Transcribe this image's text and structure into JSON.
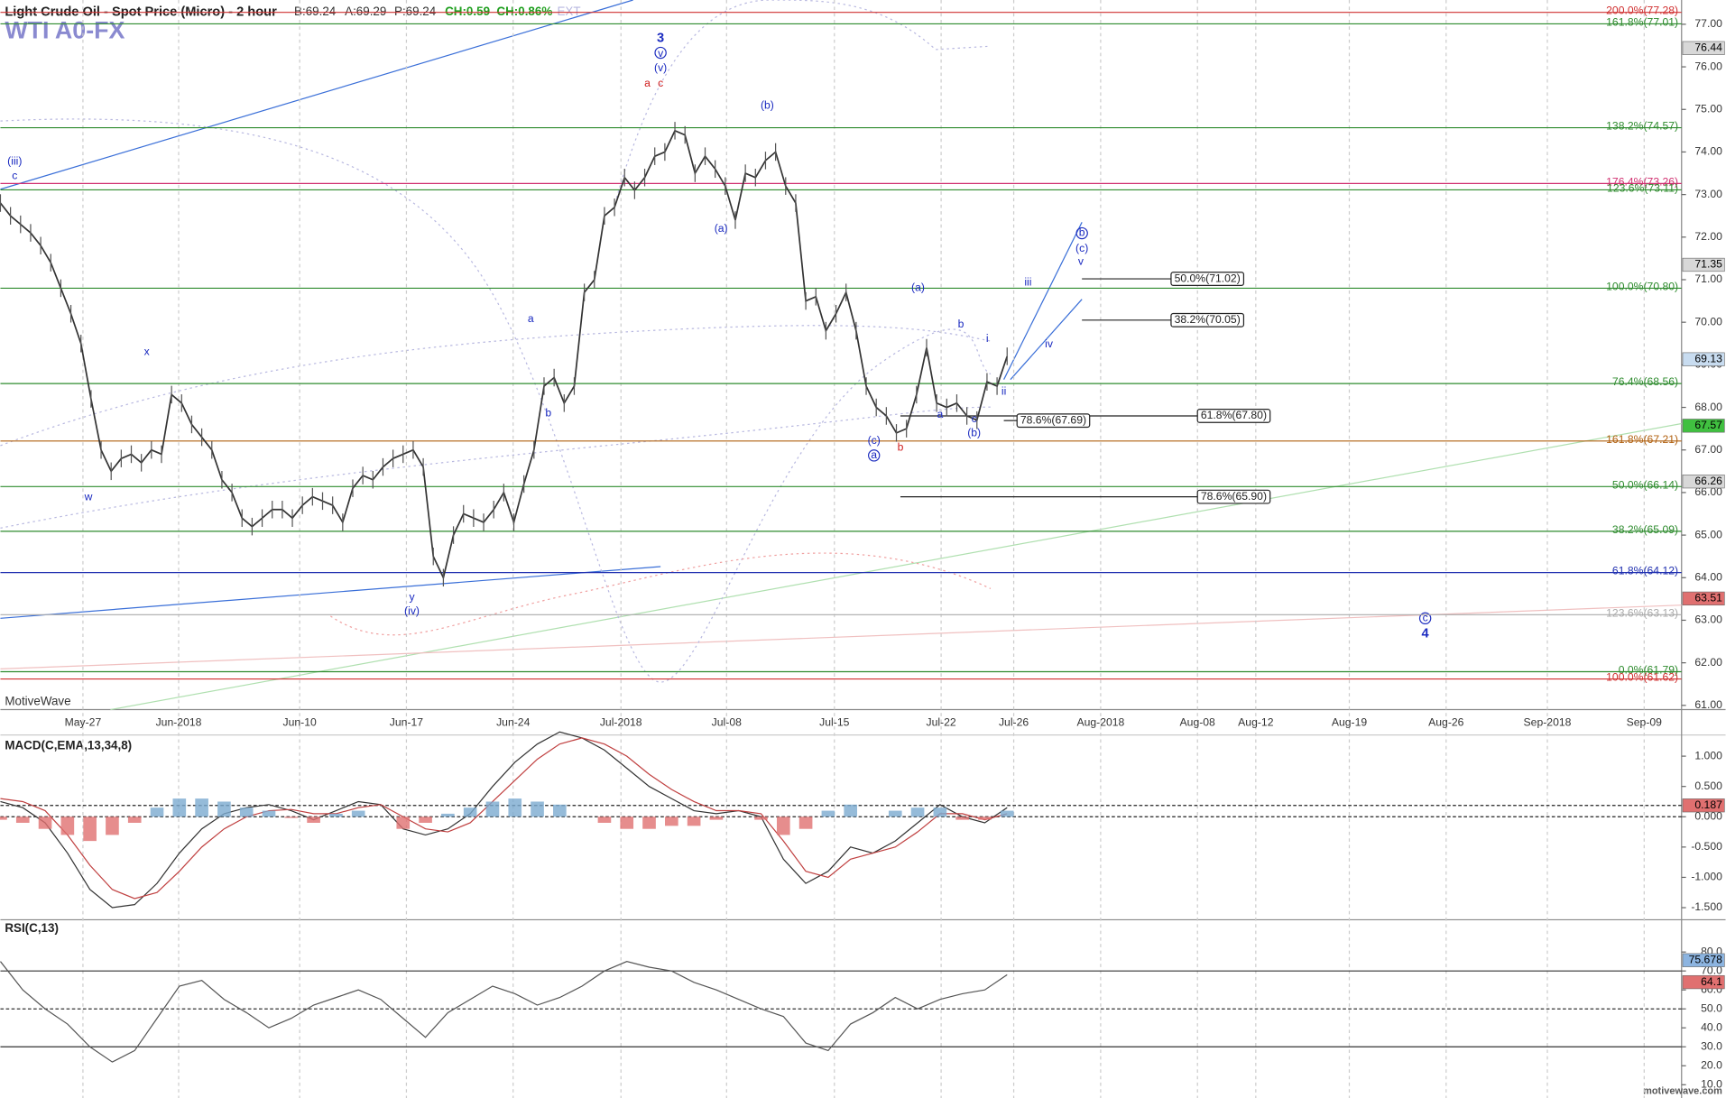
{
  "header": {
    "title": "Light Crude Oil - Spot Price (Micro) - 2 hour",
    "bid": "B:69.24",
    "ask": "A:69.29",
    "price": "P:69.24",
    "change": "CH:0.59",
    "change_pct": "CH:0.86%",
    "ext": "EXT",
    "symbol": "WTI A0-FX",
    "brand": "MotiveWave",
    "footer": "motivewave.com"
  },
  "chart_data": [
    {
      "type": "ohlc-line",
      "color": "#333333",
      "ylim": [
        60.9,
        77.57
      ],
      "yticks": [
        {
          "value": 61,
          "label": "61.00"
        },
        {
          "value": 62,
          "label": "62.00"
        },
        {
          "value": 63,
          "label": "63.00"
        },
        {
          "value": 64,
          "label": "64.00"
        },
        {
          "value": 65,
          "label": "65.00"
        },
        {
          "value": 66,
          "label": "66.00"
        },
        {
          "value": 67,
          "label": "67.00"
        },
        {
          "value": 68,
          "label": "68.00"
        },
        {
          "value": 69,
          "label": "69.00"
        },
        {
          "value": 70,
          "label": "70.00"
        },
        {
          "value": 71,
          "label": "71.00"
        },
        {
          "value": 72,
          "label": "72.00"
        },
        {
          "value": 73,
          "label": "73.00"
        },
        {
          "value": 74,
          "label": "74.00"
        },
        {
          "value": 75,
          "label": "75.00"
        },
        {
          "value": 76,
          "label": "76.00"
        },
        {
          "value": 77,
          "label": "77.00"
        }
      ],
      "xtick_labels": [
        "May-27",
        "Jun-2018",
        "Jun-10",
        "Jun-17",
        "Jun-24",
        "Jul-2018",
        "Jul-08",
        "Jul-15",
        "Jul-22",
        "Jul-26",
        "Aug-2018",
        "Aug-08",
        "Aug-12",
        "Aug-19",
        "Aug-26",
        "Sep-2018",
        "Sep-09"
      ],
      "values": [
        72.8,
        72.5,
        72.3,
        72.1,
        71.8,
        71.4,
        70.8,
        70.2,
        69.5,
        68.2,
        67.0,
        66.5,
        66.8,
        66.9,
        66.7,
        67.0,
        66.9,
        68.3,
        68.1,
        67.6,
        67.3,
        67.0,
        66.3,
        66.0,
        65.4,
        65.2,
        65.4,
        65.6,
        65.6,
        65.4,
        65.7,
        65.9,
        65.8,
        65.7,
        65.3,
        66.1,
        66.4,
        66.3,
        66.6,
        66.8,
        66.9,
        67.0,
        66.6,
        64.5,
        64.0,
        65.0,
        65.5,
        65.4,
        65.3,
        65.6,
        66.0,
        65.3,
        66.2,
        67.0,
        68.5,
        68.7,
        68.1,
        68.5,
        70.7,
        71.0,
        72.5,
        72.7,
        73.4,
        73.1,
        73.4,
        73.9,
        74.0,
        74.5,
        74.4,
        73.5,
        73.9,
        73.6,
        73.2,
        72.4,
        73.5,
        73.4,
        73.8,
        74.0,
        73.2,
        72.8,
        70.5,
        70.6,
        69.8,
        70.2,
        70.7,
        69.8,
        68.5,
        68.0,
        67.8,
        67.4,
        67.5,
        68.3,
        69.4,
        68.1,
        68.0,
        68.1,
        67.8,
        67.7,
        68.6,
        68.5,
        69.2
      ],
      "fib_levels": [
        {
          "value": 77.28,
          "label": "200.0%(77.28)",
          "color": "#d03030"
        },
        {
          "value": 77.01,
          "label": "161.8%(77.01)",
          "color": "#2e8b2e"
        },
        {
          "value": 74.57,
          "label": "138.2%(74.57)",
          "color": "#2e8b2e"
        },
        {
          "value": 73.26,
          "label": "176.4%(73.26)",
          "color": "#d03070"
        },
        {
          "value": 73.11,
          "label": "123.6%(73.11)",
          "color": "#2e8b2e"
        },
        {
          "value": 70.8,
          "label": "100.0%(70.80)",
          "color": "#2e8b2e"
        },
        {
          "value": 68.56,
          "label": "76.4%(68.56)",
          "color": "#2e8b2e"
        },
        {
          "value": 67.21,
          "label": "161.8%(67.21)",
          "color": "#b06010"
        },
        {
          "value": 66.14,
          "label": "50.0%(66.14)",
          "color": "#2e8b2e"
        },
        {
          "value": 65.09,
          "label": "38.2%(65.09)",
          "color": "#2e8b2e"
        },
        {
          "value": 64.12,
          "label": "61.8%(64.12)",
          "color": "#2030b0"
        },
        {
          "value": 63.13,
          "label": "123.6%(63.13)",
          "color": "#aaaaaa"
        },
        {
          "value": 61.79,
          "label": "0.0%(61.79)",
          "color": "#2e8b2e"
        },
        {
          "value": 61.62,
          "label": "100.0%(61.62)",
          "color": "#d03030"
        }
      ],
      "boxed_levels": [
        {
          "value": 71.02,
          "label": "50.0%(71.02)"
        },
        {
          "value": 70.05,
          "label": "38.2%(70.05)"
        },
        {
          "value": 67.8,
          "label": "61.8%(67.80)"
        },
        {
          "value": 67.69,
          "label": "78.6%(67.69)"
        },
        {
          "value": 65.9,
          "label": "78.6%(65.90)"
        }
      ],
      "price_markers": [
        {
          "value": 76.44,
          "label": "76.44",
          "color": "#d8d8d8"
        },
        {
          "value": 71.35,
          "label": "71.35",
          "color": "#d8d8d8"
        },
        {
          "value": 69.13,
          "label": "69.13",
          "color": "#c8dcf0"
        },
        {
          "value": 67.57,
          "label": "67.57",
          "color": "#40c040"
        },
        {
          "value": 66.26,
          "label": "66.26",
          "color": "#d8d8d8"
        },
        {
          "value": 63.51,
          "label": "63.51",
          "color": "#e07070"
        }
      ],
      "wave_labels": [
        "3",
        "v",
        "(v)",
        "a",
        "c",
        "(iii)",
        "c",
        "(b)",
        "(a)",
        "x",
        "w",
        "a",
        "b",
        "y",
        "(iv)",
        "(a)",
        "b",
        "i",
        "iii",
        "iv",
        "ii",
        "c",
        "a",
        "(b)",
        "(c)",
        "a",
        "b",
        "b",
        "(c)",
        "v",
        "c",
        "4"
      ]
    },
    {
      "type": "macd",
      "title": "MACD(C,EMA,13,34,8)",
      "ylim": [
        -1.7,
        1.35
      ],
      "yticks": [
        {
          "value": 1,
          "label": "1.000"
        },
        {
          "value": 0.5,
          "label": "0.500"
        },
        {
          "value": 0,
          "label": "0.000"
        },
        {
          "value": -0.5,
          "label": "-0.500"
        },
        {
          "value": -1,
          "label": "-1.000"
        },
        {
          "value": -1.5,
          "label": "-1.500"
        }
      ],
      "marker": {
        "value": 0.187,
        "label": "0.187",
        "color": "#e07070"
      },
      "series": [
        {
          "name": "MACD",
          "color": "#333333",
          "values": [
            0.25,
            0.15,
            -0.1,
            -0.6,
            -1.2,
            -1.5,
            -1.45,
            -1.1,
            -0.6,
            -0.2,
            0.05,
            0.15,
            0.2,
            0.1,
            -0.05,
            0.1,
            0.25,
            0.2,
            -0.2,
            -0.3,
            -0.2,
            0.05,
            0.5,
            0.9,
            1.2,
            1.4,
            1.3,
            1.1,
            0.8,
            0.5,
            0.3,
            0.1,
            0.05,
            0.1,
            0.0,
            -0.7,
            -1.1,
            -0.9,
            -0.5,
            -0.6,
            -0.4,
            -0.1,
            0.2,
            0.0,
            -0.1,
            0.15
          ]
        },
        {
          "name": "Signal",
          "color": "#c04040",
          "values": [
            0.3,
            0.25,
            0.1,
            -0.3,
            -0.8,
            -1.2,
            -1.35,
            -1.25,
            -0.9,
            -0.5,
            -0.2,
            0.0,
            0.1,
            0.12,
            0.05,
            0.05,
            0.15,
            0.2,
            0.0,
            -0.2,
            -0.25,
            -0.1,
            0.25,
            0.6,
            0.95,
            1.2,
            1.3,
            1.2,
            1.0,
            0.7,
            0.45,
            0.25,
            0.1,
            0.1,
            0.05,
            -0.4,
            -0.9,
            -1.0,
            -0.7,
            -0.6,
            -0.5,
            -0.25,
            0.05,
            0.05,
            -0.05,
            0.05
          ]
        },
        {
          "name": "Histogram",
          "color": "#7aaad0",
          "neg_color": "#e07070",
          "values": [
            -0.05,
            -0.1,
            -0.2,
            -0.3,
            -0.4,
            -0.3,
            -0.1,
            0.15,
            0.3,
            0.3,
            0.25,
            0.15,
            0.1,
            -0.02,
            -0.1,
            0.05,
            0.1,
            0,
            -0.2,
            -0.1,
            0.05,
            0.15,
            0.25,
            0.3,
            0.25,
            0.2,
            0,
            -0.1,
            -0.2,
            -0.2,
            -0.15,
            -0.15,
            -0.05,
            0,
            -0.05,
            -0.3,
            -0.2,
            0.1,
            0.2,
            0,
            0.1,
            0.15,
            0.15,
            -0.05,
            -0.05,
            0.1
          ]
        }
      ]
    },
    {
      "type": "rsi",
      "title": "RSI(C,13)",
      "ylim": [
        3,
        97
      ],
      "yticks": [
        {
          "value": 10,
          "label": "10.0"
        },
        {
          "value": 20,
          "label": "20.0"
        },
        {
          "value": 30,
          "label": "30.0"
        },
        {
          "value": 40,
          "label": "40.0"
        },
        {
          "value": 50,
          "label": "50.0"
        },
        {
          "value": 60,
          "label": "60.0"
        },
        {
          "value": 70,
          "label": "70.0"
        },
        {
          "value": 80,
          "label": "80.0"
        }
      ],
      "levels": [
        70,
        50,
        30
      ],
      "markers": [
        {
          "value": 75.678,
          "label": "75.678",
          "color": "#8cb4e0"
        },
        {
          "value": 64.1,
          "label": "64.1",
          "color": "#e07070"
        }
      ],
      "color": "#555555",
      "values": [
        75,
        60,
        50,
        42,
        30,
        22,
        28,
        45,
        62,
        65,
        55,
        48,
        40,
        45,
        52,
        56,
        60,
        55,
        45,
        35,
        48,
        55,
        62,
        58,
        52,
        56,
        62,
        70,
        75,
        72,
        70,
        64,
        60,
        55,
        50,
        46,
        32,
        28,
        42,
        48,
        56,
        50,
        55,
        58,
        60,
        68
      ]
    }
  ]
}
